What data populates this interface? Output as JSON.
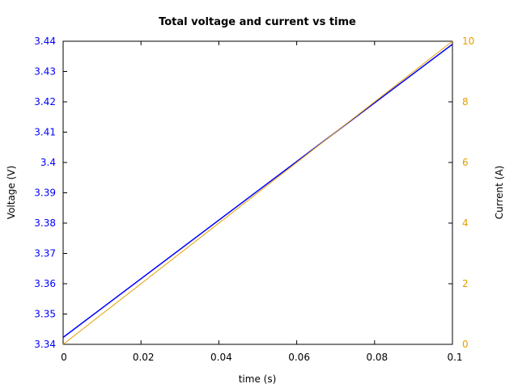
{
  "chart_data": {
    "type": "line",
    "title": "Total voltage and current vs time",
    "xlabel": "time (s)",
    "ylabel_left": "Voltage (V)",
    "ylabel_right": "Current (A)",
    "xlim": [
      0,
      0.1
    ],
    "ylim_left": [
      3.34,
      3.44
    ],
    "ylim_right": [
      0,
      10
    ],
    "x_ticks": [
      "0",
      "0.02",
      "0.04",
      "0.06",
      "0.08",
      "0.1"
    ],
    "y_left_ticks": [
      "3.34",
      "3.35",
      "3.36",
      "3.37",
      "3.38",
      "3.39",
      "3.4",
      "3.41",
      "3.42",
      "3.43",
      "3.44"
    ],
    "y_right_ticks": [
      "0",
      "2",
      "4",
      "6",
      "8",
      "10"
    ],
    "grid": false,
    "series": [
      {
        "axis": "left",
        "color": "#0000ff",
        "x": [
          0,
          0.1
        ],
        "y": [
          3.3423,
          3.439
        ]
      },
      {
        "axis": "right",
        "color": "#e69f00",
        "x": [
          0,
          0.1
        ],
        "y": [
          0,
          10
        ]
      }
    ],
    "colors": {
      "left_axis": "#0000ff",
      "right_axis": "#e69f00"
    }
  }
}
